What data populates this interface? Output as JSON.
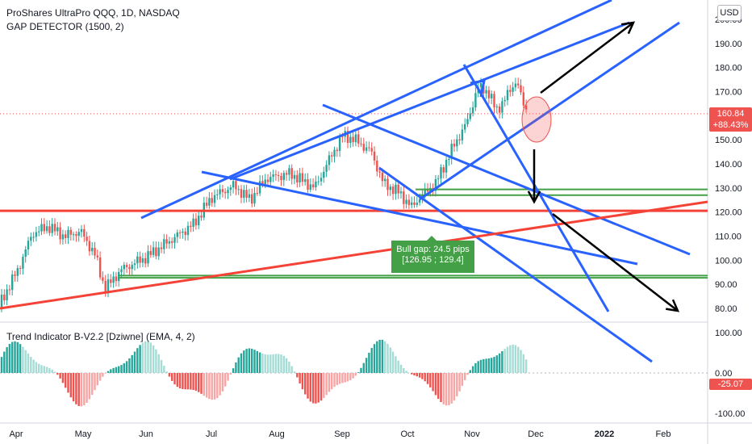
{
  "header": {
    "title": "ProShares UltraPro QQQ, 1D, NASDAQ",
    "indicator1": "GAP DETECTOR (1500, 2)",
    "indicator2": "Trend Indicator B-V2.2 [Dziwne] (EMA, 4, 2)"
  },
  "currency": "USD",
  "price_axis": [
    "200.00",
    "190.00",
    "180.00",
    "170.00",
    "160.00",
    "150.00",
    "140.00",
    "130.00",
    "120.00",
    "110.00",
    "100.00",
    "90.00",
    "80.00"
  ],
  "osc_axis": [
    "100.00",
    "0.00",
    "-100.00"
  ],
  "time_axis": [
    "Apr",
    "May",
    "Jun",
    "Jul",
    "Aug",
    "Sep",
    "Oct",
    "Nov",
    "Dec",
    "2022",
    "Feb"
  ],
  "last_price": {
    "value": "160.84",
    "change": "+88.43%",
    "color": "#ef5350"
  },
  "osc_last": {
    "value": "-25.07",
    "color": "#ef5350"
  },
  "gap_label": {
    "line1": "Bull gap: 24.5 pips",
    "line2": "[126.95 ; 129.4]"
  },
  "colors": {
    "up": "#26a69a",
    "down": "#ef5350",
    "trend": "#2962ff",
    "support": "#f44336",
    "gap": "#43a047"
  },
  "chart_data": {
    "type": "candlestick",
    "price_range": [
      75,
      205
    ],
    "gap": {
      "low": 126.95,
      "high": 129.4
    },
    "upper_gap_levels": [
      127.0,
      129.4
    ],
    "lower_gap_levels": [
      92.7,
      93.6
    ],
    "support_level": 120.5,
    "last_close": 160.84,
    "osc_range": [
      -115,
      115
    ]
  }
}
